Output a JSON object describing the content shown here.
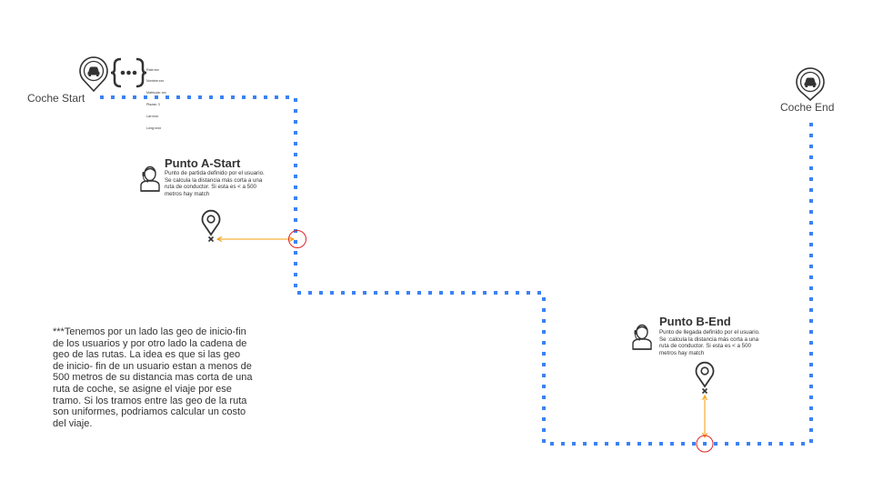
{
  "labels": {
    "coche_start": "Coche Start",
    "coche_end": "Coche End"
  },
  "meta_lines": [
    "Rate:xxx",
    "Nombre:xxx",
    "Matricula: xxx",
    "Plazas: 3",
    "Lat:xxxx",
    "Long:xxxx"
  ],
  "punto_a": {
    "title": "Punto A-Start",
    "description": "Punto de partida definido por el usuario. Se calcula la distancia más corta a una ruta de conductor. Si esta es < a 500 metros hay match"
  },
  "punto_b": {
    "title": "Punto B-End",
    "description": "Punto de llegada definido por el usuario. Se :calcula la distancia más corta a una ruta de conductor. Si esta es < a 500 metros hay match"
  },
  "note": "***Tenemos por un lado las geo de inicio-fin de los usuarios y por otro lado la cadena de geo de las rutas. La idea es que si las geo de inicio- fin de un usuario estan a menos de 500 metros de su distancia mas corta de una ruta de coche, se asigne el viaje por ese tramo. Si los tramos entre las geo de la ruta son uniformes, podriamos calcular un costo del viaje.",
  "icons": {
    "car_start": "car-location-pin-icon",
    "car_end": "car-location-pin-icon",
    "braces": "braces-ellipsis-icon",
    "user_a": "user-avatar-icon",
    "user_b": "user-avatar-icon",
    "pin_a": "location-pin-icon",
    "pin_b": "location-pin-icon"
  },
  "colors": {
    "route": "#3b82f6",
    "connector": "#f59e0b",
    "match_circle": "#e02424",
    "icon": "#333333"
  }
}
